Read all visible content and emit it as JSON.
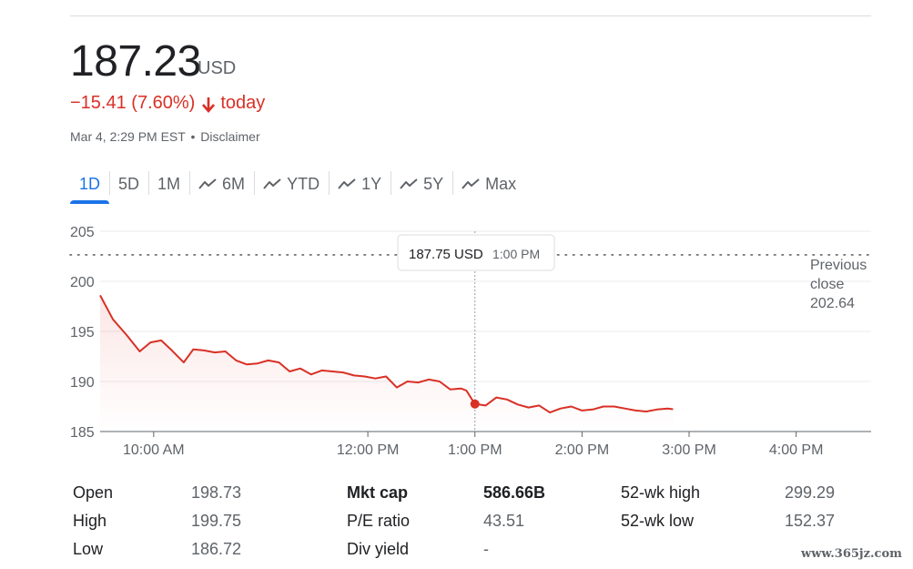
{
  "quote": {
    "price": "187.23",
    "currency": "USD",
    "change": "−15.41 (7.60%)",
    "change_suffix": "today",
    "timestamp": "Mar 4, 2:29 PM EST",
    "separator": "•",
    "disclaimer": "Disclaimer"
  },
  "tabs": [
    {
      "label": "1D",
      "active": true,
      "trend_icon": false
    },
    {
      "label": "5D",
      "active": false,
      "trend_icon": false
    },
    {
      "label": "1M",
      "active": false,
      "trend_icon": false
    },
    {
      "label": "6M",
      "active": false,
      "trend_icon": true
    },
    {
      "label": "YTD",
      "active": false,
      "trend_icon": true
    },
    {
      "label": "1Y",
      "active": false,
      "trend_icon": true
    },
    {
      "label": "5Y",
      "active": false,
      "trend_icon": true
    },
    {
      "label": "Max",
      "active": false,
      "trend_icon": true
    }
  ],
  "chart_data": {
    "type": "line",
    "y_ticks": [
      "205",
      "200",
      "195",
      "190",
      "185"
    ],
    "ylim": [
      185,
      205
    ],
    "x_ticks": [
      "10:00 AM",
      "12:00 PM",
      "1:00 PM",
      "2:00 PM",
      "3:00 PM",
      "4:00 PM"
    ],
    "x_tick_hours": [
      10,
      12,
      13,
      14,
      15,
      16
    ],
    "xlim": [
      9.5,
      16.7
    ],
    "previous_close": {
      "value": 202.64,
      "label_line1": "Previous",
      "label_line2": "close",
      "label_value": "202.64"
    },
    "tooltip": {
      "price": "187.75 USD",
      "time": "1:00 PM",
      "x": 13.0,
      "y": 187.75
    },
    "line_color": "#d93025",
    "series": [
      {
        "x": [
          9.5,
          9.62,
          9.75,
          9.87,
          9.97,
          10.07,
          10.17,
          10.28,
          10.37,
          10.47,
          10.57,
          10.67,
          10.77,
          10.87,
          10.97,
          11.07,
          11.17,
          11.27,
          11.37,
          11.47,
          11.57,
          11.67,
          11.77,
          11.87,
          11.97,
          12.07,
          12.17,
          12.27,
          12.37,
          12.47,
          12.57,
          12.67,
          12.77,
          12.87,
          12.92,
          13.0,
          13.1,
          13.2,
          13.3,
          13.4,
          13.5,
          13.6,
          13.7,
          13.8,
          13.9,
          14.0,
          14.1,
          14.2,
          14.3,
          14.4,
          14.5,
          14.6,
          14.7,
          14.8,
          14.85
        ],
        "y": [
          198.6,
          196.2,
          194.6,
          193.0,
          193.9,
          194.1,
          193.1,
          191.9,
          193.2,
          193.1,
          192.9,
          193.0,
          192.1,
          191.7,
          191.8,
          192.1,
          191.9,
          191.0,
          191.3,
          190.7,
          191.1,
          191.0,
          190.9,
          190.6,
          190.5,
          190.3,
          190.5,
          189.4,
          190.0,
          189.9,
          190.2,
          190.0,
          189.2,
          189.3,
          189.1,
          187.75,
          187.6,
          188.4,
          188.2,
          187.7,
          187.4,
          187.6,
          186.9,
          187.3,
          187.5,
          187.1,
          187.2,
          187.5,
          187.5,
          187.3,
          187.1,
          187.0,
          187.2,
          187.3,
          187.23
        ]
      }
    ]
  },
  "stats": [
    {
      "l1": "Open",
      "v1": "198.73",
      "l2": "Mkt cap",
      "v2": "586.66B",
      "l3": "52-wk high",
      "v3": "299.29"
    },
    {
      "l1": "High",
      "v1": "199.75",
      "l2": "P/E ratio",
      "v2": "43.51",
      "l3": "52-wk low",
      "v3": "152.37"
    },
    {
      "l1": "Low",
      "v1": "186.72",
      "l2": "Div yield",
      "v2": "-",
      "l3": "",
      "v3": ""
    }
  ],
  "watermark": "www.365jz.com"
}
